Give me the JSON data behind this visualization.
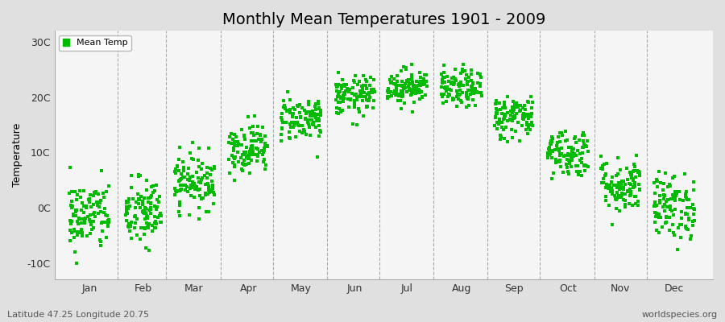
{
  "title": "Monthly Mean Temperatures 1901 - 2009",
  "ylabel": "Temperature",
  "ytick_labels": [
    "-10C",
    "0C",
    "10C",
    "20C",
    "30C"
  ],
  "ytick_values": [
    -10,
    0,
    10,
    20,
    30
  ],
  "ylim": [
    -13,
    32
  ],
  "months": [
    "Jan",
    "Feb",
    "Mar",
    "Apr",
    "May",
    "Jun",
    "Jul",
    "Aug",
    "Sep",
    "Oct",
    "Nov",
    "Dec"
  ],
  "legend_label": "Mean Temp",
  "dot_color": "#00BB00",
  "figure_bg": "#E0E0E0",
  "plot_bg": "#F5F5F5",
  "footer_left": "Latitude 47.25 Longitude 20.75",
  "footer_right": "worldspecies.org",
  "n_years": 109,
  "mean_temps": [
    -1.5,
    -1.0,
    4.8,
    10.8,
    16.2,
    20.2,
    22.0,
    21.5,
    16.5,
    10.0,
    4.0,
    0.2
  ],
  "std_temps": [
    3.2,
    3.2,
    2.5,
    2.2,
    2.0,
    1.8,
    1.6,
    1.7,
    2.0,
    2.2,
    2.5,
    3.0
  ],
  "seed": 42,
  "month_days": [
    31,
    28,
    31,
    30,
    31,
    30,
    31,
    31,
    30,
    31,
    30,
    31
  ],
  "month_centers": [
    15,
    46,
    75,
    106,
    136,
    167,
    197,
    228,
    258,
    289,
    319,
    350
  ],
  "vline_color": "#999999",
  "spine_color": "#AAAAAA",
  "title_fontsize": 14,
  "axis_label_fontsize": 9,
  "tick_fontsize": 9,
  "footer_fontsize": 8,
  "dot_size": 5,
  "xlim": [
    -5,
    372
  ]
}
